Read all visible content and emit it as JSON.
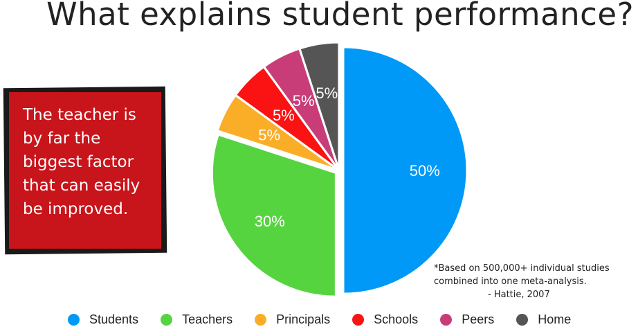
{
  "title": "What explains student performance?",
  "callout": {
    "lines": [
      "The teacher is",
      "by far the",
      "biggest factor",
      "that can easily",
      "be improved."
    ]
  },
  "note": {
    "line1": "*Based on 500,000+ individual studies",
    "line2": "combined into one meta-analysis.",
    "source": "- Hattie, 2007"
  },
  "colors": {
    "Students": "#0099f7",
    "Teachers": "#56d440",
    "Principals": "#faae28",
    "Schools": "#fb1212",
    "Peers": "#c83d78",
    "Home": "#555555",
    "callout_bg": "#c8141b"
  },
  "chart_data": {
    "type": "pie",
    "title": "What explains student performance?",
    "legend_position": "bottom",
    "slices": [
      {
        "label": "Students",
        "value": 50,
        "display": "50%"
      },
      {
        "label": "Teachers",
        "value": 30,
        "display": "30%"
      },
      {
        "label": "Principals",
        "value": 5,
        "display": "5%"
      },
      {
        "label": "Schools",
        "value": 5,
        "display": "5%"
      },
      {
        "label": "Peers",
        "value": 5,
        "display": "5%"
      },
      {
        "label": "Home",
        "value": 5,
        "display": "5%"
      }
    ]
  }
}
